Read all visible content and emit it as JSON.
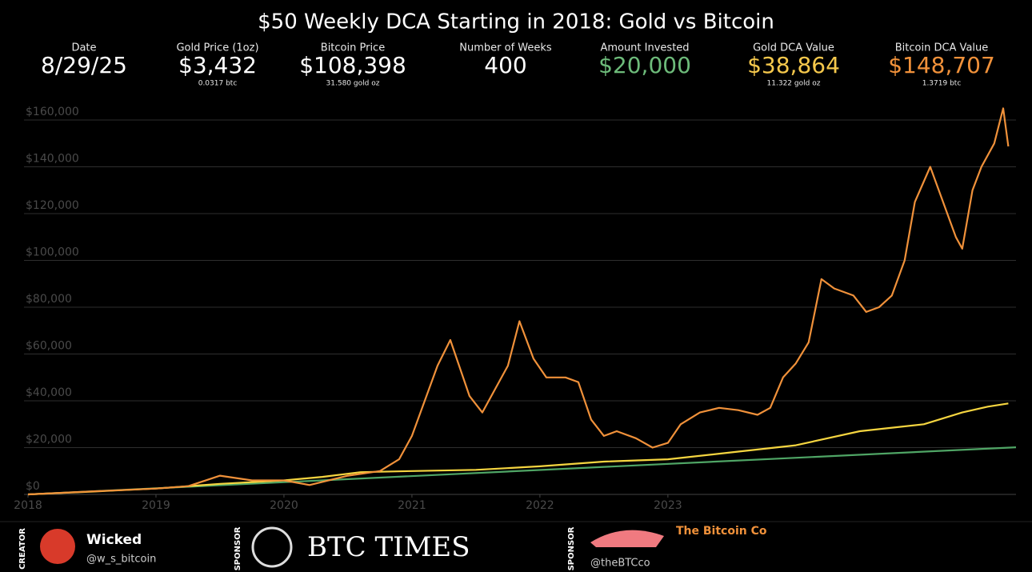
{
  "chart_data": {
    "type": "line",
    "title": "$50 Weekly DCA Starting in 2018: Gold vs Bitcoin",
    "stats": [
      {
        "label": "Date",
        "value": "8/29/25",
        "color": "#ffffff"
      },
      {
        "label": "Gold Price (1oz)",
        "value": "$3,432",
        "sublabel": "0.0317 btc",
        "color": "#ffffff"
      },
      {
        "label": "Bitcoin Price",
        "value": "$108,398",
        "sublabel": "31.580 gold oz",
        "color": "#ffffff"
      },
      {
        "label": "Number of Weeks",
        "value": "400",
        "color": "#ffffff"
      },
      {
        "label": "Amount Invested",
        "value": "$20,000",
        "color": "#6dbb7a"
      },
      {
        "label": "Gold DCA Value",
        "value": "$38,864",
        "sublabel": "11.322 gold oz",
        "color": "#f5c84c"
      },
      {
        "label": "Bitcoin DCA Value",
        "value": "$148,707",
        "sublabel": "1.3719 btc",
        "color": "#f0913a"
      }
    ],
    "xlim": [
      2018,
      2025.72
    ],
    "xticks": [
      2018,
      2019,
      2020,
      2021,
      2022,
      2023
    ],
    "ylim": [
      0,
      160000
    ],
    "yticks": [
      {
        "value": 0,
        "label": "$0"
      },
      {
        "value": 20000,
        "label": "$20,000"
      },
      {
        "value": 40000,
        "label": "$40,000"
      },
      {
        "value": 60000,
        "label": "$60,000"
      },
      {
        "value": 80000,
        "label": "$80,000"
      },
      {
        "value": 100000,
        "label": "$100,000"
      },
      {
        "value": 120000,
        "label": "$120,000"
      },
      {
        "value": 140000,
        "label": "$140,000"
      },
      {
        "value": 160000,
        "label": "$160,000"
      }
    ],
    "grid": true,
    "series": [
      {
        "name": "Amount Invested",
        "color": "#4fa565",
        "x": [
          2018,
          2025.72
        ],
        "values": [
          0,
          20150
        ]
      },
      {
        "name": "Gold DCA Value",
        "color": "#f5d540",
        "x": [
          2018,
          2018.5,
          2019,
          2019.5,
          2020,
          2020.3,
          2020.6,
          2021,
          2021.5,
          2022,
          2022.5,
          2023,
          2023.5,
          2024,
          2024.5,
          2025,
          2025.3,
          2025.5,
          2025.66
        ],
        "values": [
          0,
          1200,
          2500,
          4500,
          6000,
          7500,
          9500,
          10000,
          10500,
          12000,
          14000,
          15000,
          18000,
          21000,
          27000,
          30000,
          35000,
          37500,
          38864
        ]
      },
      {
        "name": "Bitcoin DCA Value",
        "color": "#f0913a",
        "x": [
          2018,
          2018.5,
          2019,
          2019.25,
          2019.5,
          2019.75,
          2020,
          2020.2,
          2020.5,
          2020.75,
          2020.9,
          2021,
          2021.1,
          2021.2,
          2021.3,
          2021.45,
          2021.55,
          2021.65,
          2021.75,
          2021.84,
          2021.95,
          2022.05,
          2022.2,
          2022.3,
          2022.4,
          2022.5,
          2022.6,
          2022.75,
          2022.88,
          2023,
          2023.1,
          2023.25,
          2023.4,
          2023.55,
          2023.7,
          2023.8,
          2023.9,
          2024,
          2024.1,
          2024.2,
          2024.3,
          2024.45,
          2024.55,
          2024.65,
          2024.75,
          2024.85,
          2024.93,
          2025.05,
          2025.15,
          2025.25,
          2025.3,
          2025.38,
          2025.45,
          2025.55,
          2025.62,
          2025.66
        ],
        "values": [
          0,
          1300,
          2500,
          3500,
          8000,
          6000,
          6000,
          4000,
          8000,
          10000,
          15000,
          25000,
          40000,
          55000,
          66000,
          42000,
          35000,
          45000,
          55000,
          74000,
          58000,
          50000,
          50000,
          48000,
          32000,
          25000,
          27000,
          24000,
          20000,
          22000,
          30000,
          35000,
          37000,
          36000,
          34000,
          37000,
          50000,
          56000,
          65000,
          92000,
          88000,
          85000,
          78000,
          80000,
          85000,
          100000,
          125000,
          140000,
          125000,
          110000,
          105000,
          130000,
          140000,
          150000,
          165000,
          148707
        ]
      }
    ],
    "footer": {
      "creator_tag": "CREATOR",
      "creator_name": "Wicked",
      "creator_handle": "@w_s_bitcoin",
      "sponsor1_tag": "SPONSOR",
      "sponsor1_name": "BTC TIMES",
      "sponsor2_tag": "SPONSOR",
      "sponsor2_name": "The Bitcoin Co",
      "sponsor2_handle": "@theBTCco"
    }
  }
}
